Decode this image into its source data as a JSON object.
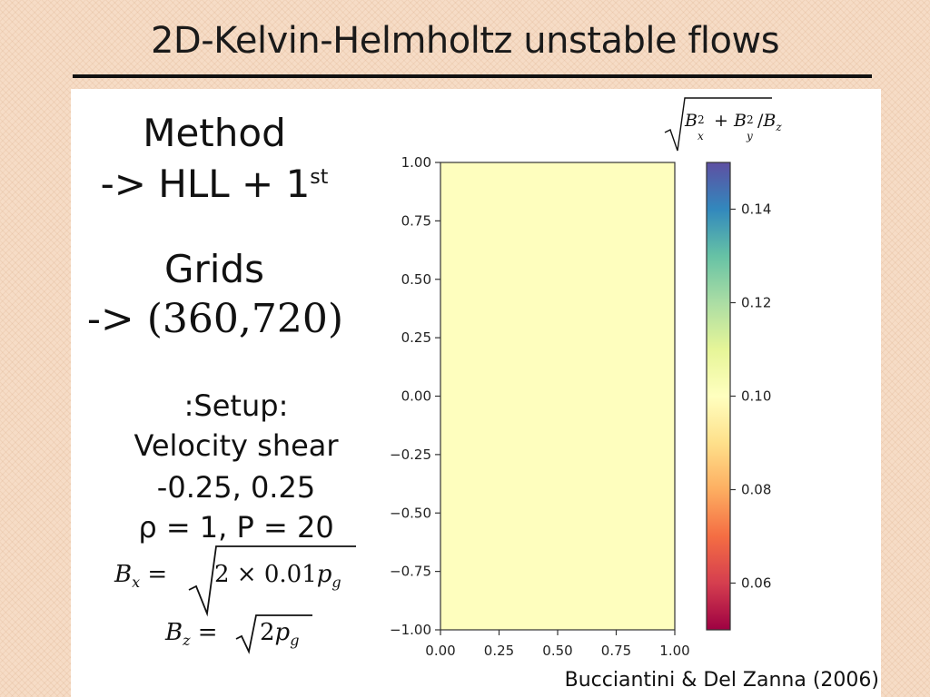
{
  "slide": {
    "title": "2D-Kelvin-Helmholtz unstable flows",
    "method_heading": "Method",
    "method_value": "-> HLL + 1",
    "method_sup": "st",
    "grids_heading": "Grids",
    "grids_value": "-> (360,720)",
    "setup_heading": ":Setup:",
    "setup_line1": "Velocity shear",
    "setup_line2": "-0.25, 0.25",
    "setup_line3": "ρ = 1, P = 20",
    "bx_lhs": "B",
    "bx_sub": "x",
    "bx_eq": " = ",
    "bx_rad": "2 × 0.01",
    "bx_p": "p",
    "bx_psub": "g",
    "bz_lhs": "B",
    "bz_sub": "z",
    "bz_eq": " = ",
    "bz_rad": "2",
    "bz_p": "p",
    "bz_psub": "g",
    "citation": "Bucciantini & Del Zanna (2006)"
  },
  "chart_data": {
    "type": "heatmap",
    "title": "√(Bx² + By²)/Bz",
    "colorbar_label_parts": [
      "B",
      "x",
      "2",
      " + ",
      "B",
      "y",
      "2",
      "/",
      "B",
      "z"
    ],
    "x_range": [
      0.0,
      1.0
    ],
    "y_range": [
      -1.0,
      1.0
    ],
    "x_ticks": [
      0.0,
      0.25,
      0.5,
      0.75,
      1.0
    ],
    "x_tick_labels": [
      "0.00",
      "0.25",
      "0.50",
      "0.75",
      "1.00"
    ],
    "y_ticks": [
      1.0,
      0.75,
      0.5,
      0.25,
      0.0,
      -0.25,
      -0.5,
      -0.75,
      -1.0
    ],
    "y_tick_labels": [
      "1.00",
      "0.75",
      "0.50",
      "0.25",
      "0.00",
      "−0.25",
      "−0.50",
      "−0.75",
      "−1.00"
    ],
    "field_value": 0.1,
    "field_color": "#fefebe",
    "colormap": "Spectral",
    "colorbar_range": [
      0.05,
      0.15
    ],
    "colorbar_ticks": [
      0.14,
      0.12,
      0.1,
      0.08,
      0.06
    ],
    "colorbar_tick_labels": [
      "0.14",
      "0.12",
      "0.10",
      "0.08",
      "0.06"
    ],
    "colormap_stops": [
      "#9e0142",
      "#d53e4f",
      "#f46d43",
      "#fdae61",
      "#fee08b",
      "#ffffbf",
      "#e6f598",
      "#abdda4",
      "#66c2a5",
      "#3288bd",
      "#5e4fa2"
    ],
    "axis_color": "#333333",
    "text_color": "#222222"
  }
}
